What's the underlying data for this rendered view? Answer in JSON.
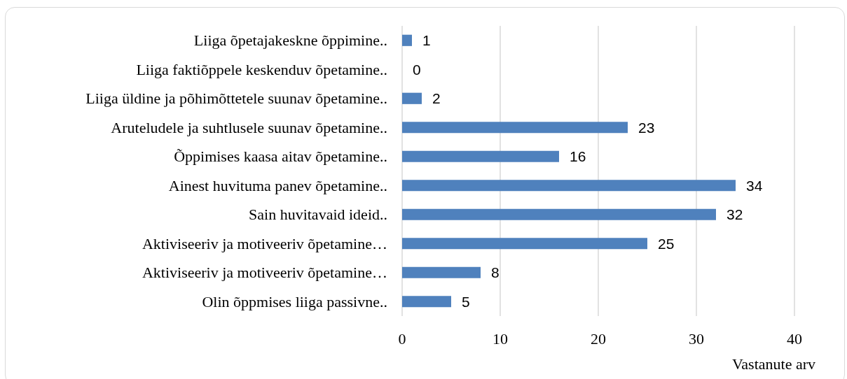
{
  "chart_data": {
    "type": "bar",
    "orientation": "horizontal",
    "categories": [
      "Liiga õpetajakeskne õppimine..",
      "Liiga faktiõppele keskenduv õpetamine..",
      "Liiga üldine ja põhimõttetele suunav õpetamine..",
      "Aruteludele ja suhtlusele suunav õpetamine..",
      "Õppimises kaasa aitav õpetamine..",
      "Ainest huvituma panev õpetamine..",
      "Sain huvitavaid ideid..",
      "Aktiviseeriv ja motiveeriv õpetamine…",
      "Aktiviseeriv ja motiveeriv õpetamine…",
      "Olin õppmises liiga passivne.."
    ],
    "values": [
      1,
      0,
      2,
      23,
      16,
      34,
      32,
      25,
      8,
      5
    ],
    "color": "#4f81bd",
    "xlim": [
      0,
      40
    ],
    "xticks": [
      0,
      10,
      20,
      30,
      40
    ],
    "xlabel": "Vastanute arv",
    "grid": "x",
    "data_labels": true
  }
}
